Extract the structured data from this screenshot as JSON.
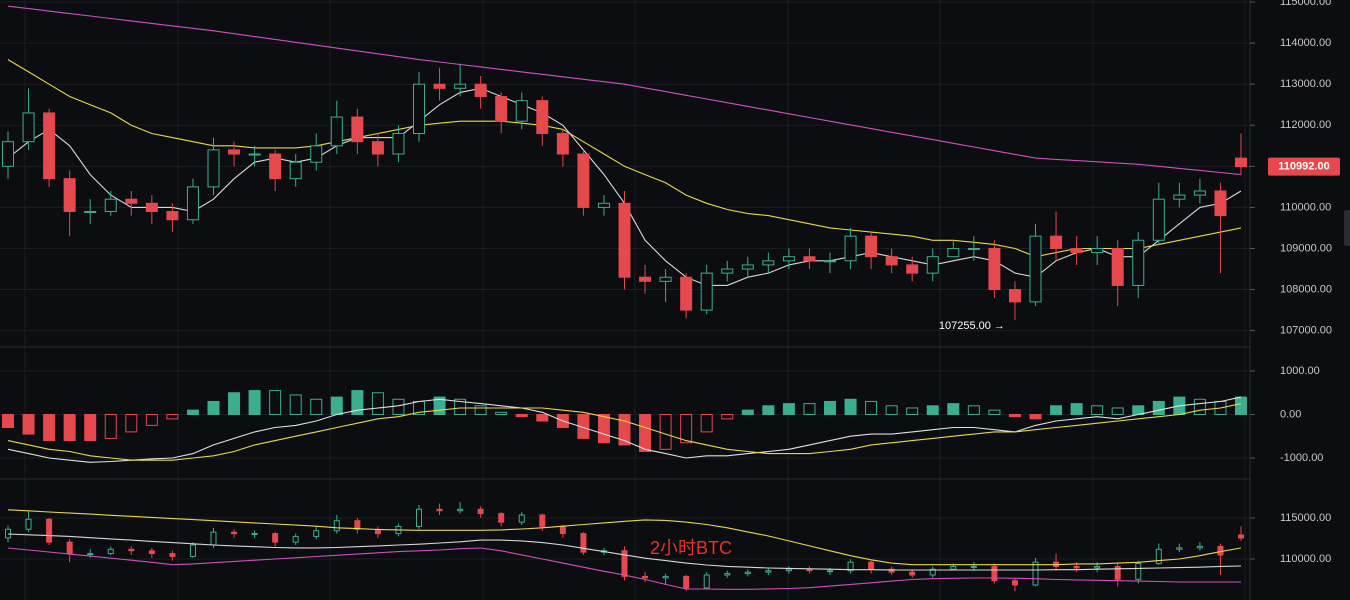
{
  "chart_data": [
    {
      "type": "candlestick",
      "open": [
        111000,
        111600,
        112300,
        110700,
        109900,
        109900,
        110200,
        110100,
        109900,
        109700,
        110500,
        111400,
        111300,
        111300,
        110700,
        111100,
        111500,
        112200,
        111600,
        111300,
        111800,
        113000,
        112900,
        113000,
        112700,
        112100,
        112600,
        111800,
        111300,
        110000,
        110100,
        108300,
        108200,
        108300,
        107500,
        108400,
        108500,
        108600,
        108700,
        108800,
        108700,
        108700,
        109300,
        108800,
        108600,
        108400,
        108800,
        109000,
        109000,
        108000,
        107700,
        109300,
        109000,
        108900,
        109000,
        108100,
        109200,
        110200,
        110300,
        110400,
        111200
      ],
      "high": [
        111850,
        112900,
        112400,
        110900,
        110200,
        110400,
        110400,
        110300,
        110100,
        110700,
        111700,
        111600,
        111500,
        111400,
        111300,
        111800,
        112600,
        112400,
        111800,
        112000,
        113300,
        113400,
        113500,
        113200,
        112800,
        112800,
        112700,
        111900,
        111400,
        110300,
        110400,
        108600,
        108500,
        108400,
        108600,
        108700,
        108800,
        108900,
        109000,
        109000,
        108900,
        109500,
        109400,
        109000,
        108800,
        109000,
        109200,
        109300,
        109200,
        108200,
        109600,
        109900,
        109300,
        109300,
        109200,
        109400,
        110600,
        110600,
        110700,
        110600,
        111800
      ],
      "low": [
        110700,
        111400,
        110500,
        109300,
        109600,
        109800,
        109800,
        109600,
        109400,
        109600,
        110300,
        111000,
        111000,
        110400,
        110500,
        110900,
        111300,
        111300,
        111000,
        111100,
        111600,
        112600,
        112700,
        112400,
        111800,
        111900,
        111500,
        111000,
        109800,
        109800,
        108000,
        107900,
        107700,
        107300,
        107400,
        108200,
        108300,
        108400,
        108500,
        108500,
        108400,
        108500,
        108500,
        108400,
        108200,
        108200,
        108800,
        108700,
        107800,
        107255,
        107600,
        108700,
        108600,
        108600,
        107600,
        107800,
        109100,
        110000,
        110100,
        108400,
        110800
      ],
      "close": [
        111600,
        112300,
        110700,
        109900,
        109900,
        110200,
        110100,
        109900,
        109700,
        110500,
        111400,
        111300,
        111300,
        110700,
        111100,
        111500,
        112200,
        111600,
        111300,
        111800,
        113000,
        112900,
        113000,
        112700,
        112100,
        112600,
        111800,
        111300,
        110000,
        110100,
        108300,
        108200,
        108300,
        107500,
        108400,
        108500,
        108600,
        108700,
        108800,
        108700,
        108700,
        109300,
        108800,
        108600,
        108400,
        108800,
        109000,
        109000,
        108000,
        107700,
        109300,
        109000,
        108900,
        109000,
        108100,
        109200,
        110200,
        110300,
        110400,
        109800,
        110992
      ],
      "up_color": "#3aae8f",
      "down_color": "#e5484d",
      "lines": [
        {
          "color": "#d24fc0",
          "values": [
            114900,
            114840,
            114780,
            114720,
            114660,
            114600,
            114540,
            114480,
            114420,
            114360,
            114300,
            114230,
            114160,
            114090,
            114020,
            113950,
            113880,
            113810,
            113740,
            113670,
            113600,
            113540,
            113480,
            113420,
            113360,
            113300,
            113240,
            113180,
            113120,
            113060,
            113000,
            112910,
            112820,
            112730,
            112640,
            112550,
            112460,
            112370,
            112280,
            112190,
            112100,
            112010,
            111920,
            111830,
            111740,
            111650,
            111560,
            111470,
            111380,
            111290,
            111200,
            111170,
            111140,
            111110,
            111080,
            111050,
            111000,
            110950,
            110900,
            110850,
            110800
          ]
        },
        {
          "color": "#e8d84a",
          "values": [
            113600,
            113300,
            113000,
            112700,
            112500,
            112300,
            112000,
            111800,
            111700,
            111600,
            111500,
            111500,
            111450,
            111450,
            111450,
            111500,
            111600,
            111700,
            111800,
            111900,
            112000,
            112050,
            112100,
            112100,
            112100,
            112050,
            112000,
            111900,
            111600,
            111300,
            111000,
            110800,
            110600,
            110300,
            110100,
            109950,
            109850,
            109800,
            109700,
            109600,
            109500,
            109450,
            109400,
            109350,
            109300,
            109200,
            109200,
            109150,
            109100,
            109000,
            108800,
            108900,
            109000,
            109000,
            109000,
            109000,
            109100,
            109200,
            109300,
            109400,
            109500
          ]
        },
        {
          "color": "#d8d8d8",
          "values": [
            111200,
            111600,
            111900,
            111500,
            110800,
            110300,
            110000,
            110000,
            110000,
            109900,
            110200,
            110700,
            111100,
            111200,
            111100,
            111200,
            111500,
            111700,
            111700,
            111700,
            112100,
            112500,
            112800,
            112900,
            112700,
            112500,
            112300,
            112000,
            111400,
            110800,
            110100,
            109200,
            108700,
            108300,
            108100,
            108100,
            108300,
            108400,
            108600,
            108700,
            108700,
            108800,
            108900,
            108800,
            108700,
            108600,
            108700,
            108800,
            108700,
            108400,
            108300,
            108700,
            108900,
            109000,
            108800,
            108800,
            109200,
            109600,
            110000,
            110100,
            110400
          ]
        }
      ],
      "ylim": [
        106650,
        115050
      ],
      "yticks": [
        {
          "value": 115000,
          "label": "115000.00"
        },
        {
          "value": 114000,
          "label": "114000.00"
        },
        {
          "value": 113000,
          "label": "113000.00"
        },
        {
          "value": 112000,
          "label": "112000.00"
        },
        {
          "value": 111000,
          "label": "111000.00"
        },
        {
          "value": 110000,
          "label": "110000.00"
        },
        {
          "value": 109000,
          "label": "109000.00"
        },
        {
          "value": 108000,
          "label": "108000.00"
        },
        {
          "value": 107000,
          "label": "107000.00"
        }
      ],
      "last_price_label": "110992.00",
      "low_annotation": "107255.00 →",
      "grid": true
    },
    {
      "type": "macd",
      "histogram": [
        -300,
        -450,
        -600,
        -600,
        -600,
        -550,
        -400,
        -250,
        -100,
        100,
        300,
        500,
        550,
        550,
        450,
        350,
        400,
        550,
        500,
        350,
        300,
        400,
        350,
        200,
        50,
        -50,
        -150,
        -300,
        -550,
        -650,
        -700,
        -850,
        -800,
        -650,
        -400,
        -100,
        100,
        200,
        250,
        250,
        300,
        350,
        300,
        200,
        150,
        200,
        250,
        200,
        100,
        -50,
        -100,
        200,
        250,
        200,
        150,
        200,
        300,
        400,
        350,
        300,
        400
      ],
      "up_color": "#3aae8f",
      "down_color": "#e5484d",
      "lines": [
        {
          "color": "#e0e0e0",
          "values": [
            -800,
            -900,
            -1000,
            -1050,
            -1100,
            -1080,
            -1050,
            -1020,
            -1000,
            -900,
            -700,
            -550,
            -400,
            -300,
            -250,
            -150,
            0,
            100,
            150,
            200,
            300,
            350,
            300,
            250,
            200,
            150,
            50,
            -150,
            -300,
            -450,
            -600,
            -800,
            -900,
            -1000,
            -950,
            -950,
            -900,
            -850,
            -800,
            -700,
            -600,
            -500,
            -450,
            -450,
            -400,
            -350,
            -300,
            -300,
            -350,
            -400,
            -250,
            -150,
            -100,
            -50,
            -100,
            0,
            100,
            200,
            250,
            300,
            400
          ]
        },
        {
          "color": "#e8d84a",
          "values": [
            -600,
            -700,
            -800,
            -850,
            -950,
            -1000,
            -1050,
            -1050,
            -1050,
            -1000,
            -950,
            -850,
            -700,
            -600,
            -500,
            -400,
            -300,
            -200,
            -100,
            -50,
            50,
            100,
            150,
            150,
            150,
            150,
            150,
            100,
            50,
            -50,
            -150,
            -300,
            -450,
            -600,
            -700,
            -800,
            -850,
            -900,
            -900,
            -900,
            -850,
            -800,
            -700,
            -650,
            -600,
            -550,
            -500,
            -450,
            -400,
            -400,
            -350,
            -300,
            -250,
            -200,
            -150,
            -100,
            -50,
            0,
            100,
            150,
            250
          ]
        }
      ],
      "ylim": [
        -1460,
        1483
      ],
      "yticks": [
        {
          "value": 1000,
          "label": "1000.00"
        },
        {
          "value": 0,
          "label": "0.00"
        },
        {
          "value": -1000,
          "label": "-1000.00"
        }
      ],
      "grid": true
    },
    {
      "type": "bands",
      "annotation": "2小时BTC",
      "annotation_color": "#e5332a",
      "lines": [
        {
          "color": "#e8d84a",
          "values": [
            116000,
            115870,
            115730,
            115600,
            115470,
            115330,
            115200,
            115070,
            114930,
            114800,
            114670,
            114530,
            114400,
            114270,
            114130,
            114000,
            113800,
            113700,
            113600,
            113550,
            113500,
            113500,
            113500,
            113500,
            113550,
            113650,
            113800,
            114000,
            114200,
            114400,
            114600,
            114760,
            114700,
            114500,
            114200,
            113800,
            113300,
            112800,
            112200,
            111600,
            111000,
            110400,
            109900,
            109500,
            109300,
            109300,
            109300,
            109300,
            109300,
            109300,
            109300,
            109300,
            109400,
            109400,
            109500,
            109600,
            109800,
            110000,
            110400,
            110900,
            111340
          ]
        },
        {
          "color": "#d8d8d8",
          "values": [
            113050,
            112950,
            112850,
            112750,
            112600,
            112450,
            112300,
            112150,
            112000,
            111850,
            111700,
            111600,
            111500,
            111400,
            111350,
            111350,
            111400,
            111500,
            111600,
            111700,
            111800,
            111950,
            112100,
            112300,
            112300,
            112200,
            112000,
            111700,
            111300,
            110900,
            110500,
            110100,
            109800,
            109500,
            109270,
            109100,
            109000,
            108900,
            108850,
            108800,
            108750,
            108700,
            108700,
            108660,
            108660,
            108660,
            108660,
            108660,
            108660,
            108660,
            108660,
            108700,
            108700,
            108750,
            108800,
            108850,
            108900,
            108950,
            109000,
            109100,
            109150
          ]
        },
        {
          "color": "#d24fc0",
          "values": [
            111340,
            111100,
            110850,
            110600,
            110350,
            110100,
            109850,
            109600,
            109300,
            109400,
            109550,
            109700,
            109850,
            110000,
            110150,
            110300,
            110450,
            110600,
            110750,
            110900,
            111000,
            111100,
            111250,
            111340,
            111000,
            110500,
            110000,
            109500,
            109000,
            108500,
            108050,
            107500,
            106900,
            106340,
            106340,
            106300,
            106300,
            106350,
            106400,
            106500,
            106700,
            106900,
            107100,
            107300,
            107500,
            107600,
            107650,
            107680,
            107680,
            107650,
            107600,
            107500,
            107450,
            107400,
            107350,
            107300,
            107250,
            107200,
            107200,
            107200,
            107200
          ]
        }
      ],
      "ylim": [
        105000,
        119630
      ],
      "yticks": [
        {
          "value": 115000,
          "label": "115000.00"
        },
        {
          "value": 110000,
          "label": "110000.00"
        }
      ],
      "grid": true
    }
  ]
}
